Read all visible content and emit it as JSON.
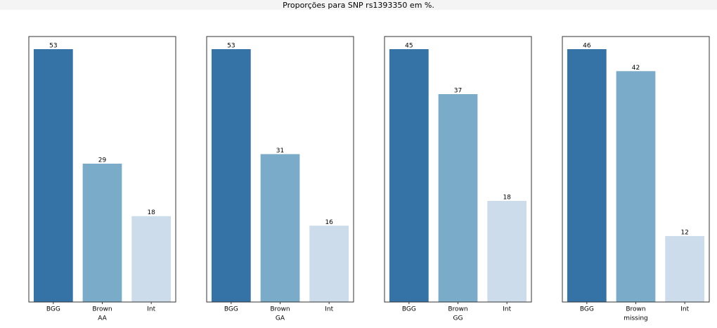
{
  "title": "Proporções para SNP rs1393350 em %.",
  "chart_data": [
    {
      "type": "bar",
      "xlabel": "AA",
      "categories": [
        "BGG",
        "Brown",
        "Int"
      ],
      "values": [
        53,
        29,
        18
      ],
      "colors": [
        "#3572a5",
        "#7aabc9",
        "#ccdcea"
      ],
      "ylim": [
        0,
        55.65
      ]
    },
    {
      "type": "bar",
      "xlabel": "GA",
      "categories": [
        "BGG",
        "Brown",
        "Int"
      ],
      "values": [
        53,
        31,
        16
      ],
      "colors": [
        "#3572a5",
        "#7aabc9",
        "#ccdcea"
      ],
      "ylim": [
        0,
        55.65
      ]
    },
    {
      "type": "bar",
      "xlabel": "GG",
      "categories": [
        "BGG",
        "Brown",
        "Int"
      ],
      "values": [
        45,
        37,
        18
      ],
      "colors": [
        "#3572a5",
        "#7aabc9",
        "#ccdcea"
      ],
      "ylim": [
        0,
        47.25
      ]
    },
    {
      "type": "bar",
      "xlabel": "missing",
      "categories": [
        "BGG",
        "Brown",
        "Int"
      ],
      "values": [
        46,
        42,
        12
      ],
      "colors": [
        "#3572a5",
        "#7aabc9",
        "#ccdcea"
      ],
      "ylim": [
        0,
        48.3
      ]
    }
  ]
}
